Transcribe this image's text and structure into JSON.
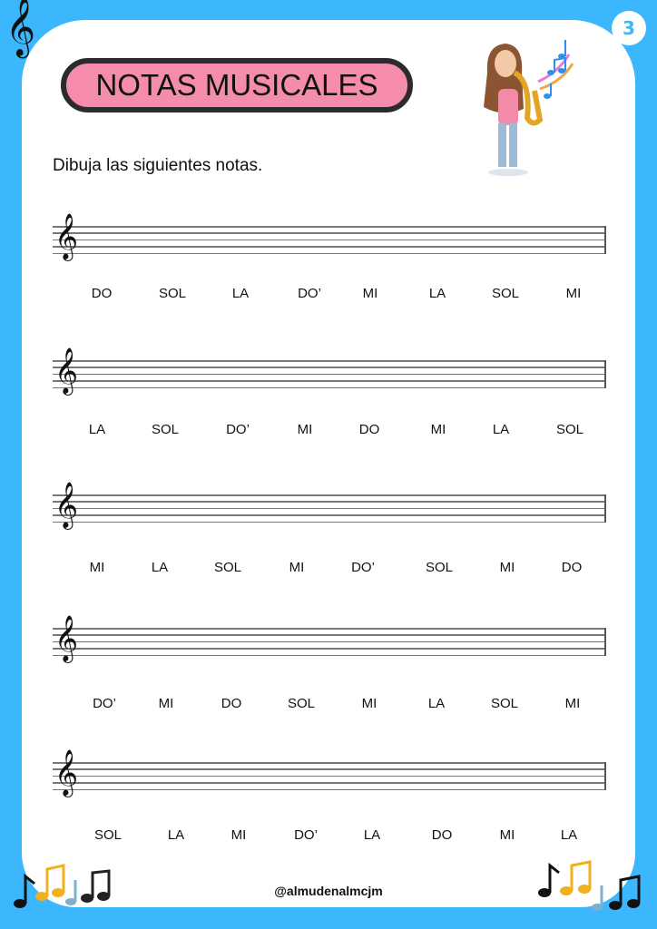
{
  "page_number": "3",
  "title": "NOTAS MUSICALES",
  "instruction": "Dibuja las siguientes notas.",
  "rows": [
    [
      "DO",
      "SOL",
      "LA",
      "DO’",
      "MI",
      "LA",
      "SOL",
      "MI"
    ],
    [
      "LA",
      "SOL",
      "DO’",
      "MI",
      "DO",
      "MI",
      "LA",
      "SOL"
    ],
    [
      "MI",
      "LA",
      "SOL",
      "MI",
      "DO’",
      "SOL",
      "MI",
      "DO"
    ],
    [
      "DO’",
      "MI",
      "DO",
      "SOL",
      "MI",
      "LA",
      "SOL",
      "MI"
    ],
    [
      "SOL",
      "LA",
      "MI",
      "DO’",
      "LA",
      "DO",
      "MI",
      "LA"
    ]
  ],
  "footer": "@almudenalmcjm",
  "colors": {
    "background": "#3cb6fd",
    "title_fill": "#f68cab",
    "title_border": "#2b2b2e"
  },
  "icons": [
    "treble-clef-icon",
    "music-notes-icon",
    "saxophone-girl-illustration"
  ]
}
